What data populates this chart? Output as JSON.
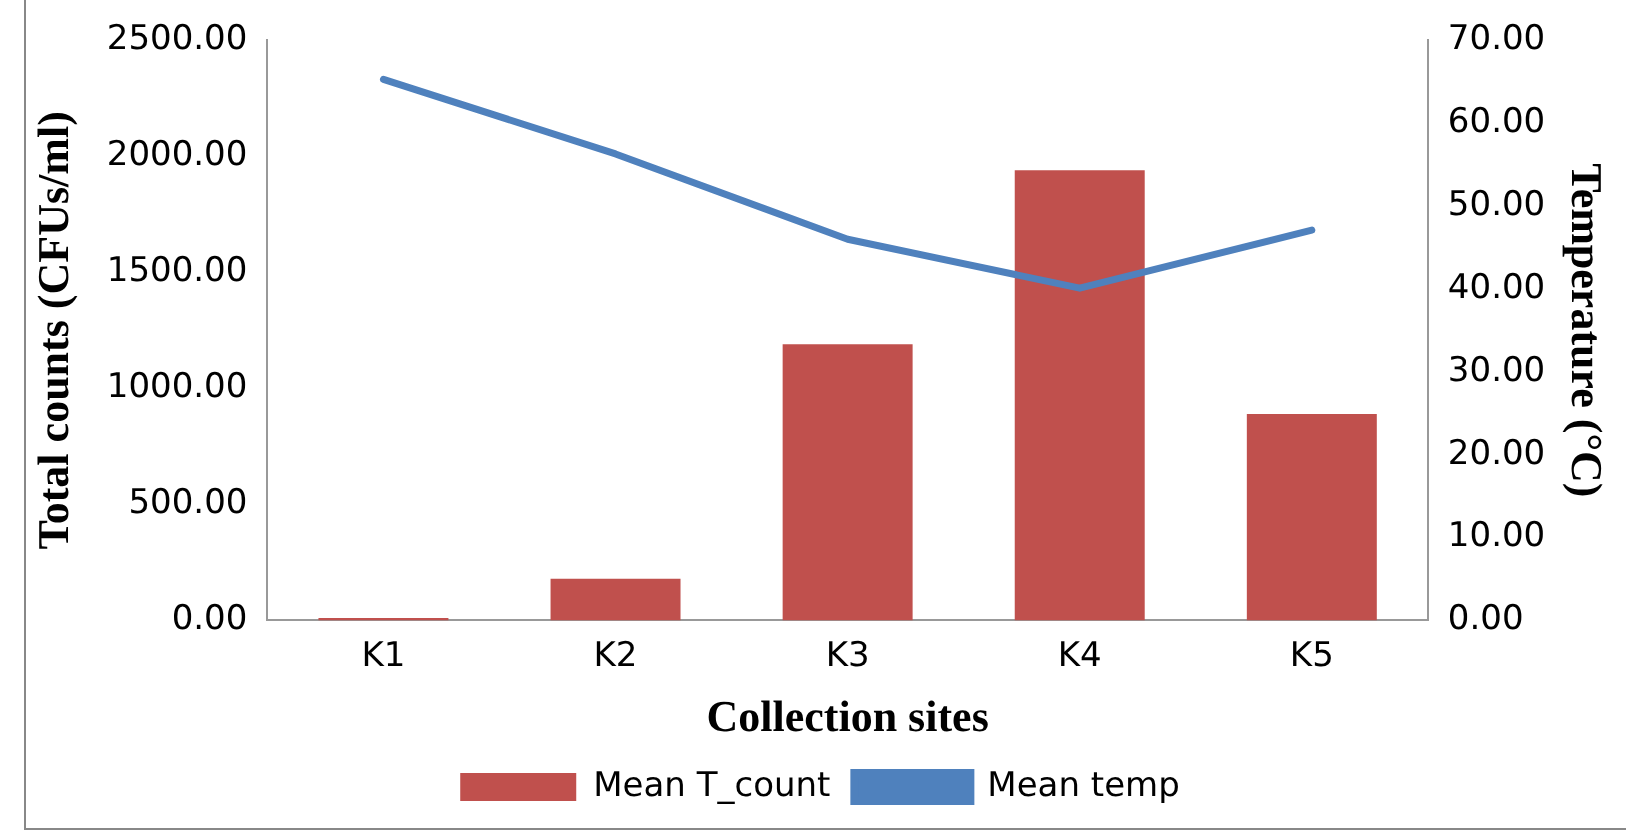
{
  "chart_data": {
    "type": "bar",
    "xlabel": "Collection sites",
    "ylabel": "Total counts (CFUs/ml)",
    "y2label": "Temperature (°C)",
    "categories": [
      "K1",
      "K2",
      "K3",
      "K4",
      "K5"
    ],
    "series": [
      {
        "name": "Mean T_count",
        "color": "#c0504d",
        "values": [
          10,
          180,
          1190,
          1940,
          890
        ]
      },
      {
        "name": "Mean temp",
        "type": "line",
        "axis": "y2",
        "color": "#4f81bd",
        "marker": "none",
        "values": [
          65.3,
          56.3,
          46.0,
          40.1,
          47.1
        ]
      }
    ],
    "ylim": [
      0,
      2500
    ],
    "yticks": [
      {
        "value": 0,
        "label": "0.00"
      },
      {
        "value": 500,
        "label": "500.00"
      },
      {
        "value": 1000,
        "label": "1000.00"
      },
      {
        "value": 1500,
        "label": "1500.00"
      },
      {
        "value": 2000,
        "label": "2000.00"
      },
      {
        "value": 2500,
        "label": "2500.00"
      }
    ],
    "y2lim": [
      0,
      70
    ],
    "y2ticks": [
      {
        "value": 0,
        "label": "0.00"
      },
      {
        "value": 10,
        "label": "10.00"
      },
      {
        "value": 20,
        "label": "20.00"
      },
      {
        "value": 30,
        "label": "30.00"
      },
      {
        "value": 40,
        "label": "40.00"
      },
      {
        "value": 50,
        "label": "50.00"
      },
      {
        "value": 60,
        "label": "60.00"
      },
      {
        "value": 70,
        "label": "70.00"
      }
    ],
    "grid": false,
    "legend": "bottom"
  }
}
